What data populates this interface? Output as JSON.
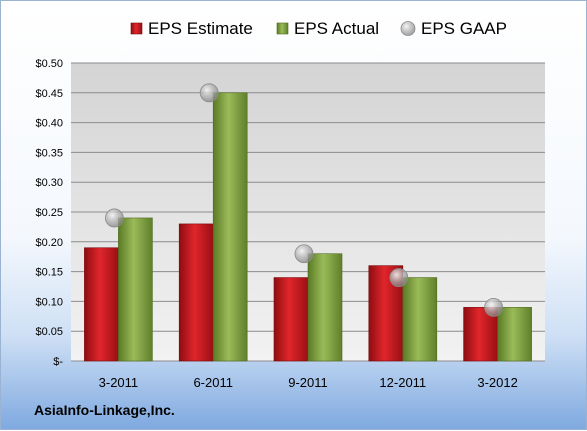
{
  "company": "AsiaInfo-Linkage,Inc.",
  "chart_data": {
    "type": "bar",
    "title": "",
    "xlabel": "",
    "ylabel": "",
    "categories": [
      "3-2011",
      "6-2011",
      "9-2011",
      "12-2011",
      "3-2012"
    ],
    "series": [
      {
        "name": "EPS Estimate",
        "type": "bar",
        "color": "#c0151b",
        "values": [
          0.19,
          0.23,
          0.14,
          0.16,
          0.09
        ]
      },
      {
        "name": "EPS Actual",
        "type": "bar",
        "color": "#76933c",
        "values": [
          0.24,
          0.45,
          0.18,
          0.14,
          0.09
        ]
      },
      {
        "name": "EPS GAAP",
        "type": "marker",
        "color": "#a6a6a6",
        "values": [
          0.24,
          0.45,
          0.18,
          0.14,
          0.09
        ]
      }
    ],
    "ylim": [
      0,
      0.5
    ],
    "yticks": [
      0,
      0.05,
      0.1,
      0.15,
      0.2,
      0.25,
      0.3,
      0.35,
      0.4,
      0.45,
      0.5
    ],
    "ytick_labels": [
      "$-",
      "$0.05",
      "$0.10",
      "$0.15",
      "$0.20",
      "$0.25",
      "$0.30",
      "$0.35",
      "$0.40",
      "$0.45",
      "$0.50"
    ],
    "grid": true,
    "legend": "top"
  }
}
